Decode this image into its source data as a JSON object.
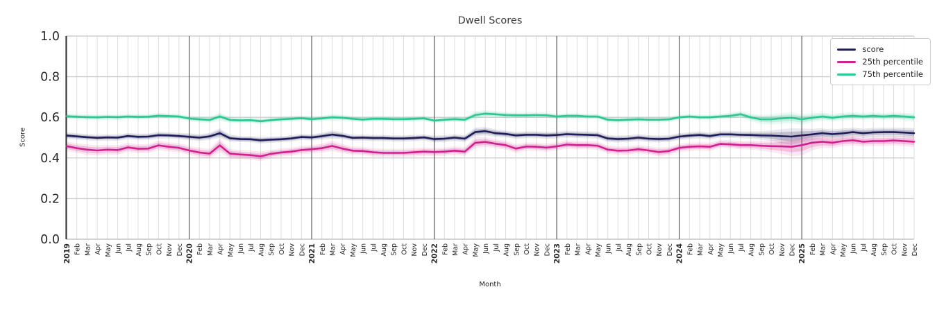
{
  "chart_data": {
    "type": "line",
    "title": "Dwell Scores",
    "xlabel": "Month",
    "ylabel": "Score",
    "ylim": [
      0.0,
      1.0
    ],
    "yticks": [
      0.0,
      0.2,
      0.4,
      0.6,
      0.8,
      1.0
    ],
    "grid": true,
    "legend_position": "upper right",
    "x_tick_labels": [
      "2019",
      "Feb",
      "Mar",
      "Apr",
      "May",
      "Jun",
      "Jul",
      "Aug",
      "Sep",
      "Oct",
      "Nov",
      "Dec",
      "2020",
      "Feb",
      "Mar",
      "Apr",
      "May",
      "Jun",
      "Jul",
      "Aug",
      "Sep",
      "Oct",
      "Nov",
      "Dec",
      "2021",
      "Feb",
      "Mar",
      "Apr",
      "May",
      "Jun",
      "Jul",
      "Aug",
      "Sep",
      "Oct",
      "Nov",
      "Dec",
      "2022",
      "Feb",
      "Mar",
      "Apr",
      "May",
      "Jun",
      "Jul",
      "Aug",
      "Sep",
      "Oct",
      "Nov",
      "Dec",
      "2023",
      "Feb",
      "Mar",
      "Apr",
      "May",
      "Jun",
      "Jul",
      "Aug",
      "Sep",
      "Oct",
      "Nov",
      "Dec",
      "2024",
      "Feb",
      "Mar",
      "Apr",
      "May",
      "Jun",
      "Jul",
      "Aug",
      "Sep",
      "Oct",
      "Nov",
      "Dec",
      "2025",
      "Feb",
      "Mar",
      "Apr",
      "May",
      "Jun",
      "Jul",
      "Aug",
      "Sep",
      "Oct",
      "Nov",
      "Dec"
    ],
    "series": [
      {
        "name": "score",
        "color": "#1e1d58",
        "values": [
          0.51,
          0.506,
          0.502,
          0.499,
          0.501,
          0.5,
          0.508,
          0.504,
          0.505,
          0.512,
          0.511,
          0.508,
          0.504,
          0.5,
          0.506,
          0.522,
          0.497,
          0.493,
          0.492,
          0.487,
          0.49,
          0.492,
          0.496,
          0.503,
          0.501,
          0.507,
          0.515,
          0.509,
          0.499,
          0.5,
          0.498,
          0.498,
          0.496,
          0.496,
          0.498,
          0.501,
          0.493,
          0.495,
          0.5,
          0.495,
          0.527,
          0.532,
          0.522,
          0.518,
          0.511,
          0.514,
          0.514,
          0.511,
          0.513,
          0.517,
          0.515,
          0.514,
          0.512,
          0.496,
          0.493,
          0.495,
          0.5,
          0.495,
          0.493,
          0.495,
          0.505,
          0.51,
          0.513,
          0.508,
          0.516,
          0.516,
          0.514,
          0.513,
          0.511,
          0.51,
          0.507,
          0.505,
          0.511,
          0.516,
          0.522,
          0.517,
          0.521,
          0.527,
          0.522,
          0.526,
          0.527,
          0.527,
          0.525,
          0.522
        ],
        "ci": [
          0.01,
          0.009,
          0.009,
          0.009,
          0.009,
          0.009,
          0.009,
          0.009,
          0.009,
          0.01,
          0.009,
          0.009,
          0.01,
          0.01,
          0.01,
          0.014,
          0.01,
          0.009,
          0.009,
          0.01,
          0.009,
          0.009,
          0.009,
          0.009,
          0.009,
          0.01,
          0.012,
          0.01,
          0.009,
          0.009,
          0.009,
          0.009,
          0.009,
          0.009,
          0.009,
          0.009,
          0.01,
          0.01,
          0.01,
          0.01,
          0.013,
          0.012,
          0.011,
          0.01,
          0.01,
          0.01,
          0.01,
          0.01,
          0.01,
          0.01,
          0.01,
          0.01,
          0.01,
          0.01,
          0.01,
          0.01,
          0.01,
          0.01,
          0.01,
          0.01,
          0.01,
          0.01,
          0.01,
          0.01,
          0.01,
          0.01,
          0.01,
          0.011,
          0.012,
          0.015,
          0.02,
          0.024,
          0.02,
          0.016,
          0.014,
          0.014,
          0.014,
          0.013,
          0.013,
          0.013,
          0.013,
          0.013,
          0.014,
          0.015
        ]
      },
      {
        "name": "25th percentile",
        "color": "#d0208e",
        "values": [
          0.458,
          0.448,
          0.441,
          0.437,
          0.441,
          0.439,
          0.452,
          0.445,
          0.446,
          0.462,
          0.455,
          0.45,
          0.437,
          0.427,
          0.421,
          0.462,
          0.421,
          0.417,
          0.414,
          0.408,
          0.42,
          0.427,
          0.431,
          0.439,
          0.443,
          0.448,
          0.459,
          0.446,
          0.436,
          0.434,
          0.428,
          0.425,
          0.425,
          0.425,
          0.428,
          0.431,
          0.429,
          0.431,
          0.436,
          0.431,
          0.474,
          0.479,
          0.47,
          0.463,
          0.446,
          0.456,
          0.455,
          0.451,
          0.457,
          0.466,
          0.463,
          0.463,
          0.46,
          0.441,
          0.436,
          0.437,
          0.443,
          0.437,
          0.429,
          0.434,
          0.45,
          0.455,
          0.457,
          0.455,
          0.469,
          0.467,
          0.463,
          0.463,
          0.46,
          0.458,
          0.457,
          0.455,
          0.463,
          0.475,
          0.48,
          0.475,
          0.483,
          0.487,
          0.48,
          0.483,
          0.483,
          0.486,
          0.483,
          0.48
        ],
        "ci": [
          0.014,
          0.014,
          0.015,
          0.015,
          0.014,
          0.014,
          0.013,
          0.013,
          0.013,
          0.014,
          0.013,
          0.013,
          0.013,
          0.014,
          0.014,
          0.02,
          0.014,
          0.013,
          0.013,
          0.014,
          0.012,
          0.012,
          0.012,
          0.012,
          0.012,
          0.013,
          0.015,
          0.013,
          0.012,
          0.012,
          0.012,
          0.012,
          0.012,
          0.012,
          0.012,
          0.012,
          0.012,
          0.012,
          0.012,
          0.013,
          0.016,
          0.014,
          0.013,
          0.013,
          0.013,
          0.012,
          0.012,
          0.012,
          0.012,
          0.012,
          0.012,
          0.012,
          0.012,
          0.012,
          0.012,
          0.012,
          0.012,
          0.012,
          0.013,
          0.012,
          0.012,
          0.012,
          0.012,
          0.012,
          0.012,
          0.012,
          0.012,
          0.013,
          0.014,
          0.017,
          0.022,
          0.027,
          0.03,
          0.022,
          0.018,
          0.016,
          0.015,
          0.015,
          0.014,
          0.014,
          0.014,
          0.014,
          0.015,
          0.016
        ]
      },
      {
        "name": "75th percentile",
        "color": "#2cc593",
        "values": [
          0.605,
          0.603,
          0.601,
          0.6,
          0.602,
          0.601,
          0.604,
          0.602,
          0.603,
          0.608,
          0.606,
          0.604,
          0.594,
          0.59,
          0.587,
          0.604,
          0.587,
          0.585,
          0.586,
          0.581,
          0.586,
          0.59,
          0.593,
          0.596,
          0.591,
          0.595,
          0.6,
          0.598,
          0.593,
          0.589,
          0.593,
          0.593,
          0.591,
          0.591,
          0.593,
          0.595,
          0.584,
          0.588,
          0.591,
          0.588,
          0.611,
          0.618,
          0.615,
          0.611,
          0.61,
          0.61,
          0.611,
          0.61,
          0.604,
          0.607,
          0.607,
          0.604,
          0.604,
          0.588,
          0.586,
          0.588,
          0.59,
          0.588,
          0.588,
          0.59,
          0.6,
          0.604,
          0.6,
          0.6,
          0.604,
          0.607,
          0.615,
          0.6,
          0.59,
          0.59,
          0.595,
          0.598,
          0.59,
          0.598,
          0.604,
          0.598,
          0.604,
          0.607,
          0.604,
          0.607,
          0.604,
          0.607,
          0.604,
          0.6
        ],
        "ci": [
          0.008,
          0.008,
          0.008,
          0.008,
          0.008,
          0.008,
          0.008,
          0.008,
          0.008,
          0.008,
          0.008,
          0.008,
          0.008,
          0.009,
          0.009,
          0.012,
          0.009,
          0.008,
          0.008,
          0.009,
          0.008,
          0.008,
          0.008,
          0.008,
          0.008,
          0.008,
          0.01,
          0.009,
          0.008,
          0.008,
          0.008,
          0.008,
          0.008,
          0.008,
          0.008,
          0.008,
          0.008,
          0.008,
          0.008,
          0.008,
          0.011,
          0.01,
          0.009,
          0.009,
          0.008,
          0.008,
          0.008,
          0.008,
          0.008,
          0.008,
          0.008,
          0.008,
          0.008,
          0.008,
          0.008,
          0.008,
          0.008,
          0.008,
          0.008,
          0.008,
          0.008,
          0.008,
          0.008,
          0.008,
          0.008,
          0.009,
          0.01,
          0.011,
          0.013,
          0.015,
          0.016,
          0.016,
          0.016,
          0.013,
          0.012,
          0.011,
          0.011,
          0.011,
          0.01,
          0.01,
          0.01,
          0.01,
          0.011,
          0.012
        ]
      }
    ]
  }
}
